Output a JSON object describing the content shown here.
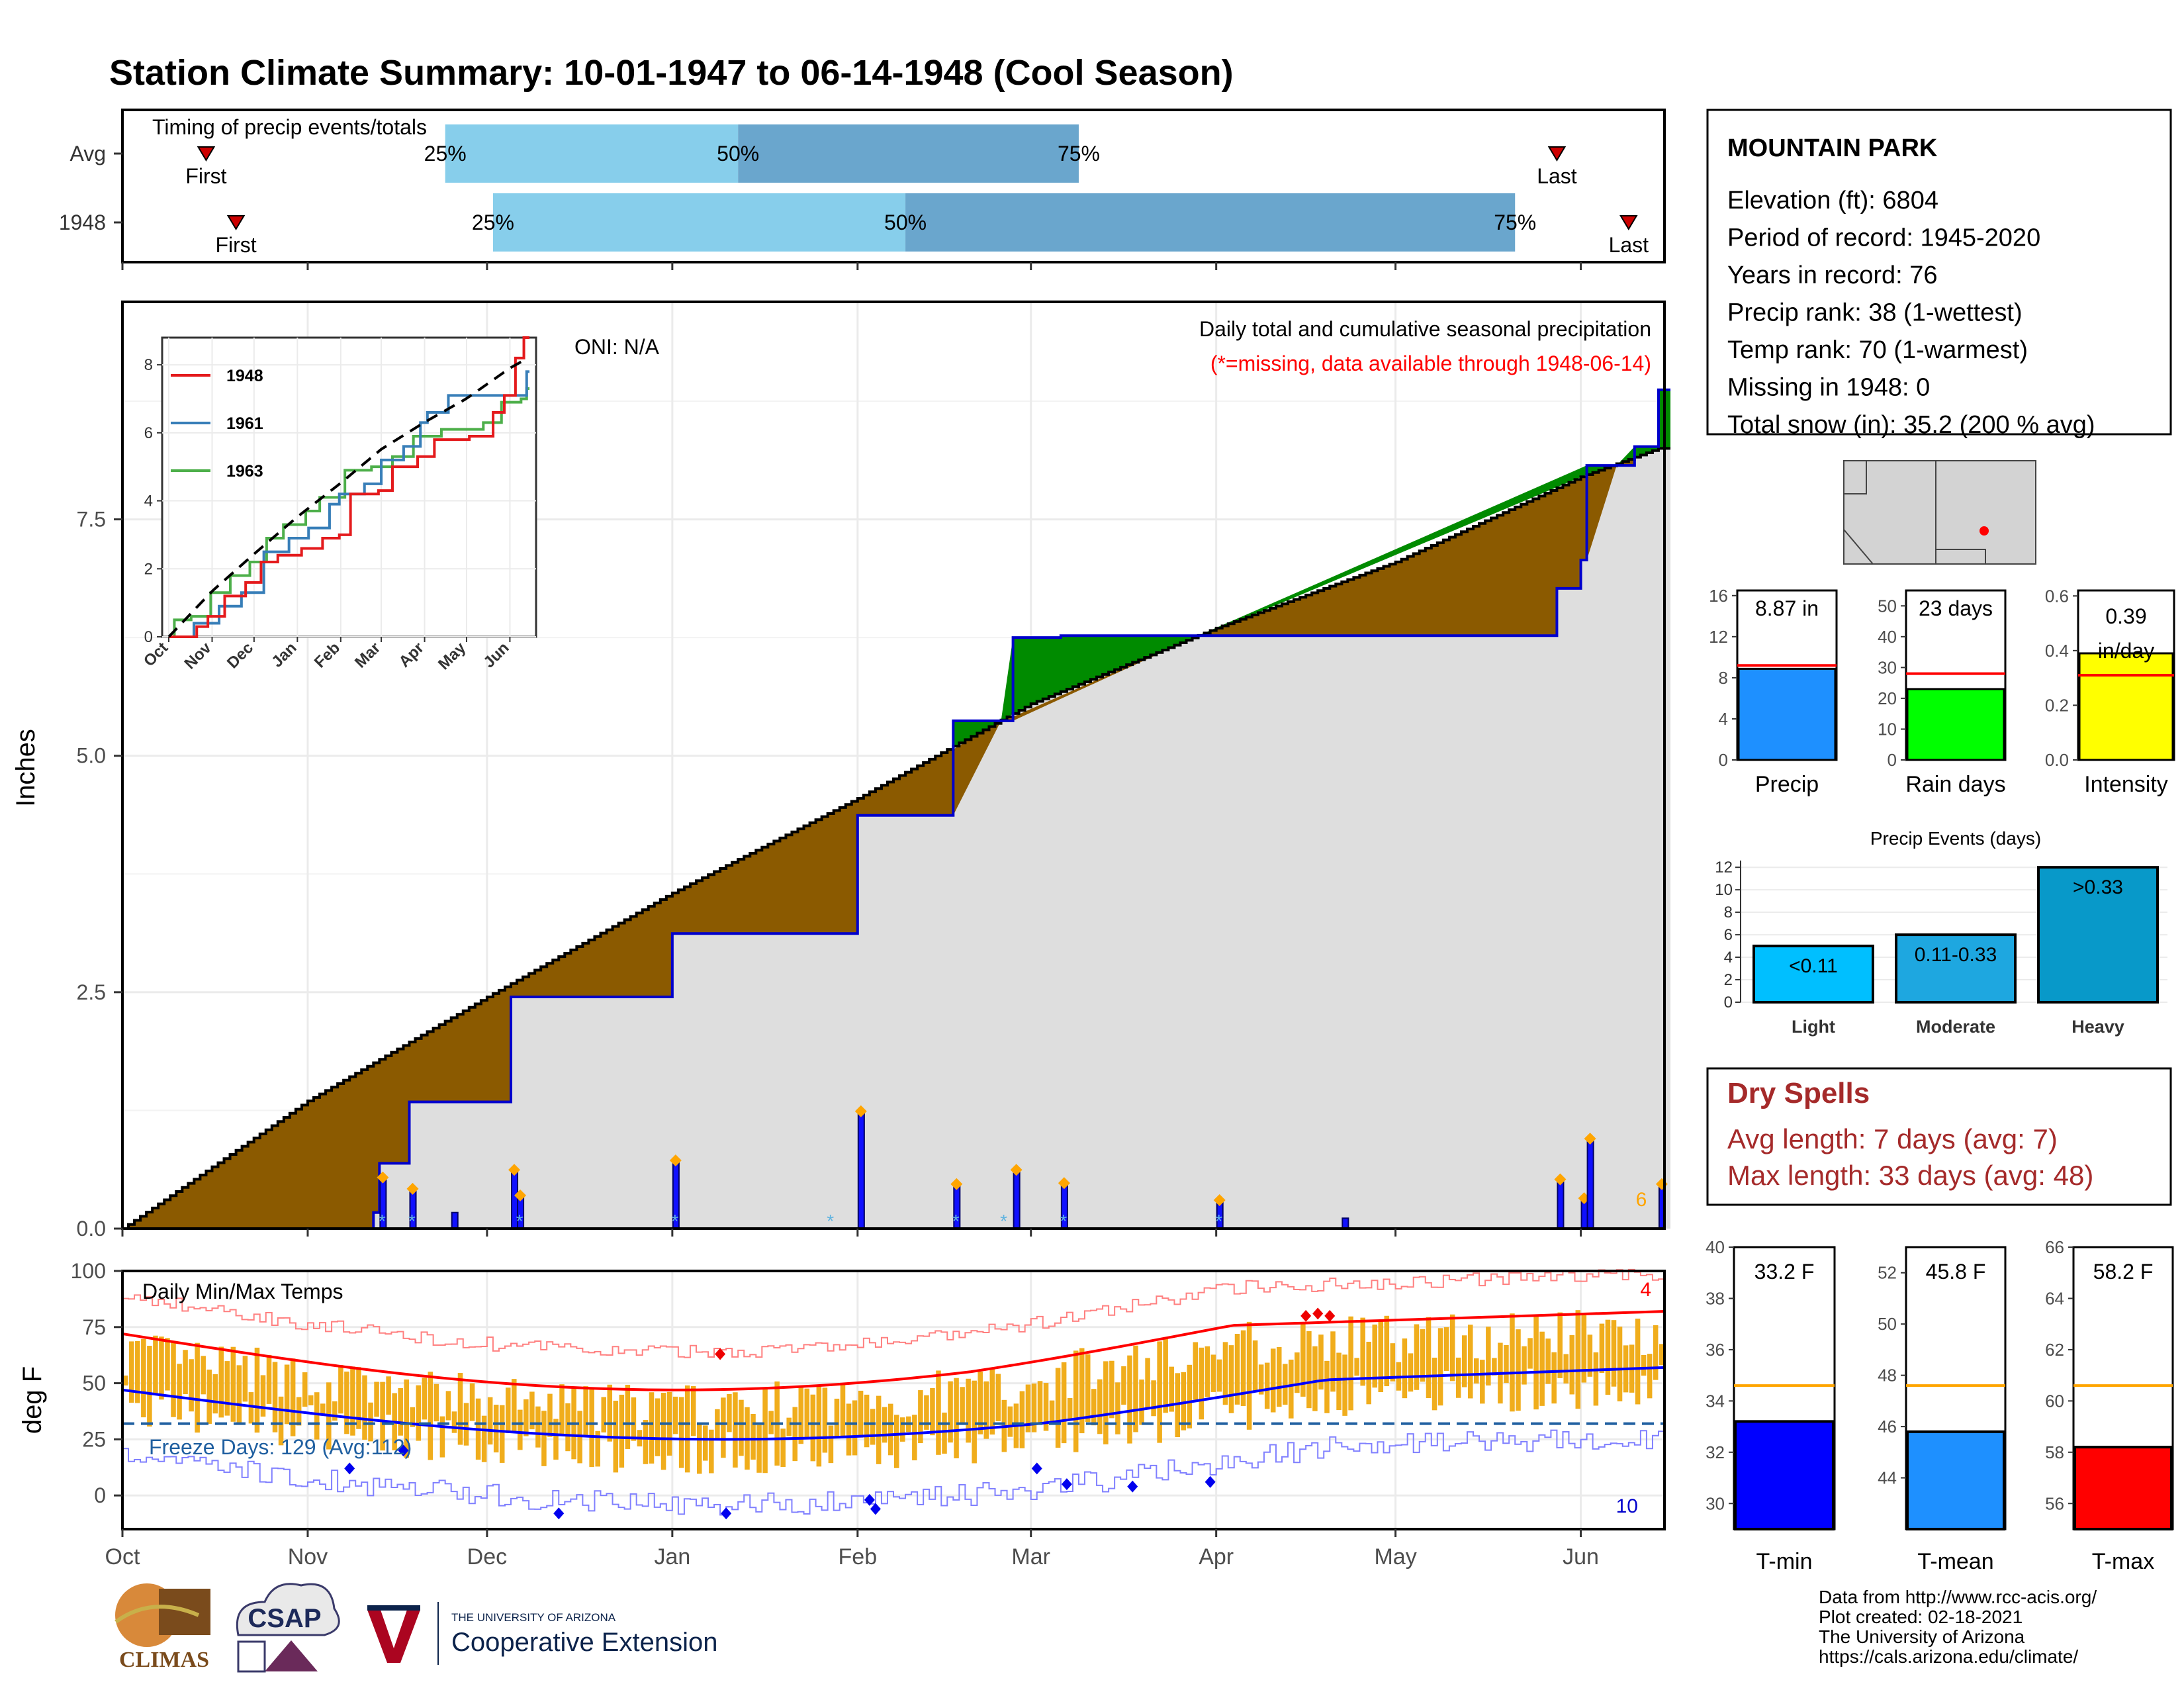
{
  "title": "Station Climate Summary: 10-01-1947 to 06-14-1948 (Cool Season)",
  "colors": {
    "title": "#233f87",
    "q_light": "#87ceeb",
    "q_dark": "#6aa6cd",
    "brown": "#8b5a00",
    "green": "#008b00",
    "gray_fill": "#dedede",
    "blue_line": "#0000cc",
    "orange": "#ffa500",
    "bar_gold": "#f0ad1c",
    "red": "#ff0000",
    "blue": "#1010e0",
    "dry_red": "#a52a2a"
  },
  "timing": {
    "label": "Timing of precip events/totals",
    "rows": [
      {
        "name": "Avg",
        "first_day": 14,
        "q25_day": 54,
        "q50_day": 103,
        "q75_day": 160,
        "last_day": 240,
        "first_label": "First",
        "q25_label": "25%",
        "q50_label": "50%",
        "q75_label": "75%",
        "last_label": "Last"
      },
      {
        "name": "1948",
        "first_day": 19,
        "q25_day": 62,
        "q50_day": 131,
        "q75_day": 233,
        "last_day": 252,
        "first_label": "First",
        "q25_label": "25%",
        "q50_label": "50%",
        "q75_label": "75%",
        "last_label": "Last"
      }
    ]
  },
  "precip_panel": {
    "title": "Daily total and cumulative seasonal precipitation",
    "subtitle": "(*=missing, data available through 1948-06-14)",
    "oni": "ONI: N/A",
    "ylabel": "Inches",
    "yticks": [
      "0.0",
      "2.5",
      "5.0",
      "7.5"
    ],
    "corner_label": "6"
  },
  "inset": {
    "yticks": [
      "0",
      "2",
      "4",
      "6",
      "8"
    ],
    "months": [
      "Oct",
      "Nov",
      "Dec",
      "Jan",
      "Feb",
      "Mar",
      "Apr",
      "May",
      "Jun"
    ],
    "legend": [
      {
        "name": "1948",
        "color": "#e41a1c"
      },
      {
        "name": "1961",
        "color": "#377eb8"
      },
      {
        "name": "1963",
        "color": "#4daf4a"
      }
    ]
  },
  "temp_panel": {
    "title": "Daily Min/Max Temps",
    "ylabel": "deg F",
    "yticks": [
      "0",
      "25",
      "50",
      "75",
      "100"
    ],
    "freeze_label": "Freeze Days: 129 (Avg:112)",
    "count_top": "4",
    "count_bottom": "10"
  },
  "months": [
    "Oct",
    "Nov",
    "Dec",
    "Jan",
    "Feb",
    "Mar",
    "Apr",
    "May",
    "Jun"
  ],
  "station": {
    "name": "MOUNTAIN PARK",
    "lines": [
      "Elevation (ft): 6804",
      "Period of record: 1945-2020",
      "Years in record: 76",
      "Precip rank: 38 (1-wettest)",
      "Temp rank: 70 (1-warmest)",
      "Missing in 1948: 0",
      "Total snow (in): 35.2 (200 % avg)"
    ]
  },
  "mini_bars": [
    {
      "name": "Precip",
      "value_label": "8.87 in",
      "value": 8.87,
      "avg": 9.2,
      "ylim": [
        0,
        16.5
      ],
      "ticks": [
        "0",
        "4",
        "8",
        "12",
        "16"
      ],
      "color": "#1e90ff"
    },
    {
      "name": "Rain days",
      "value_label": "23 days",
      "value": 23,
      "avg": 28,
      "ylim": [
        0,
        55
      ],
      "ticks": [
        "0",
        "10",
        "20",
        "30",
        "40",
        "50"
      ],
      "color": "#00ff00"
    },
    {
      "name": "Intensity",
      "value_label": "0.39 in/day",
      "value": 0.39,
      "avg": 0.31,
      "ylim": [
        0,
        0.62
      ],
      "ticks": [
        "0.0",
        "0.2",
        "0.4",
        "0.6"
      ],
      "color": "#ffff00"
    }
  ],
  "events": {
    "title": "Precip Events (days)",
    "yticks": [
      "0",
      "2",
      "4",
      "6",
      "8",
      "10",
      "12"
    ],
    "bars": [
      {
        "cat": "Light",
        "label": "<0.11",
        "value": 5,
        "color": "#00bfff"
      },
      {
        "cat": "Moderate",
        "label": "0.11-0.33",
        "value": 6,
        "color": "#1ea7e0"
      },
      {
        "cat": "Heavy",
        "label": ">0.33",
        "value": 12,
        "color": "#0899c9"
      }
    ]
  },
  "dry_spells": {
    "title": "Dry Spells",
    "avg": "Avg length: 7 days (avg: 7)",
    "max": "Max length: 33 days (avg: 48)"
  },
  "temp_bars": [
    {
      "name": "T-min",
      "value_label": "33.2 F",
      "value": 33.2,
      "avg": 34.6,
      "ylim": [
        29,
        40
      ],
      "ticks": [
        "30",
        "32",
        "34",
        "36",
        "38",
        "40"
      ],
      "color": "#0000ff"
    },
    {
      "name": "T-mean",
      "value_label": "45.8 F",
      "value": 45.8,
      "avg": 47.6,
      "ylim": [
        42,
        53
      ],
      "ticks": [
        "44",
        "46",
        "48",
        "50",
        "52"
      ],
      "color": "#1e90ff"
    },
    {
      "name": "T-max",
      "value_label": "58.2 F",
      "value": 58.2,
      "avg": 60.6,
      "ylim": [
        55,
        66
      ],
      "ticks": [
        "56",
        "58",
        "60",
        "62",
        "64",
        "66"
      ],
      "color": "#ff0000"
    }
  ],
  "footer": {
    "lines": [
      "Data from http://www.rcc-acis.org/",
      "Plot created: 02-18-2021",
      "The University of Arizona",
      "https://cals.arizona.edu/climate/"
    ],
    "logo_climas": "CLIMAS",
    "logo_csap": "CSAP",
    "ua_small": "THE UNIVERSITY OF ARIZONA",
    "ua_big": "Cooperative Extension"
  },
  "chart_data": {
    "type": "area",
    "title": "Daily total and cumulative seasonal precipitation",
    "ylabel": "Inches",
    "ylim": [
      0,
      9.8
    ],
    "x_range": [
      "1947-10-01",
      "1948-06-14"
    ],
    "series": [
      {
        "name": "1948 cumulative",
        "points": [
          [
            "1947-10-01",
            0
          ],
          [
            "1947-11-12",
            0.17
          ],
          [
            "1947-11-13",
            0.69
          ],
          [
            "1947-11-18",
            1.34
          ],
          [
            "1947-12-05",
            2.45
          ],
          [
            "1948-01-01",
            3.12
          ],
          [
            "1948-02-01",
            4.37
          ],
          [
            "1948-02-17",
            5.37
          ],
          [
            "1948-02-27",
            6.25
          ],
          [
            "1948-03-06",
            6.27
          ],
          [
            "1948-04-01",
            6.27
          ],
          [
            "1948-04-22",
            6.27
          ],
          [
            "1948-05-27",
            6.27
          ],
          [
            "1948-05-28",
            6.77
          ],
          [
            "1948-06-01",
            7.07
          ],
          [
            "1948-06-02",
            8.07
          ],
          [
            "1948-06-10",
            8.27
          ],
          [
            "1948-06-14",
            8.87
          ]
        ]
      },
      {
        "name": "Average cumulative",
        "points": [
          [
            "1947-10-01",
            0
          ],
          [
            "1947-11-01",
            1.35
          ],
          [
            "1947-12-01",
            2.45
          ],
          [
            "1948-01-01",
            3.55
          ],
          [
            "1948-02-01",
            4.55
          ],
          [
            "1948-03-01",
            5.55
          ],
          [
            "1948-04-01",
            6.35
          ],
          [
            "1948-05-01",
            7.05
          ],
          [
            "1948-06-01",
            7.95
          ],
          [
            "1948-06-14",
            8.25
          ]
        ]
      }
    ],
    "daily_precip": [
      [
        "1947-11-13",
        0.52
      ],
      [
        "1947-11-18",
        0.4
      ],
      [
        "1947-11-25",
        0.17
      ],
      [
        "1947-12-05",
        0.6
      ],
      [
        "1947-12-06",
        0.33
      ],
      [
        "1948-01-01",
        0.7
      ],
      [
        "1948-02-01",
        1.22
      ],
      [
        "1948-02-17",
        0.45
      ],
      [
        "1948-02-27",
        0.6
      ],
      [
        "1948-03-06",
        0.46
      ],
      [
        "1948-04-01",
        0.28
      ],
      [
        "1948-04-22",
        0.11
      ],
      [
        "1948-05-28",
        0.5
      ],
      [
        "1948-06-01",
        0.3
      ],
      [
        "1948-06-02",
        0.93
      ],
      [
        "1948-06-14",
        0.45
      ]
    ],
    "temp": {
      "ylabel": "deg F",
      "ylim": [
        -15,
        100
      ],
      "avg_max_start": 72,
      "avg_max_end": 82,
      "avg_min_start": 47,
      "avg_min_end": 53,
      "freeze_line": 32
    }
  }
}
